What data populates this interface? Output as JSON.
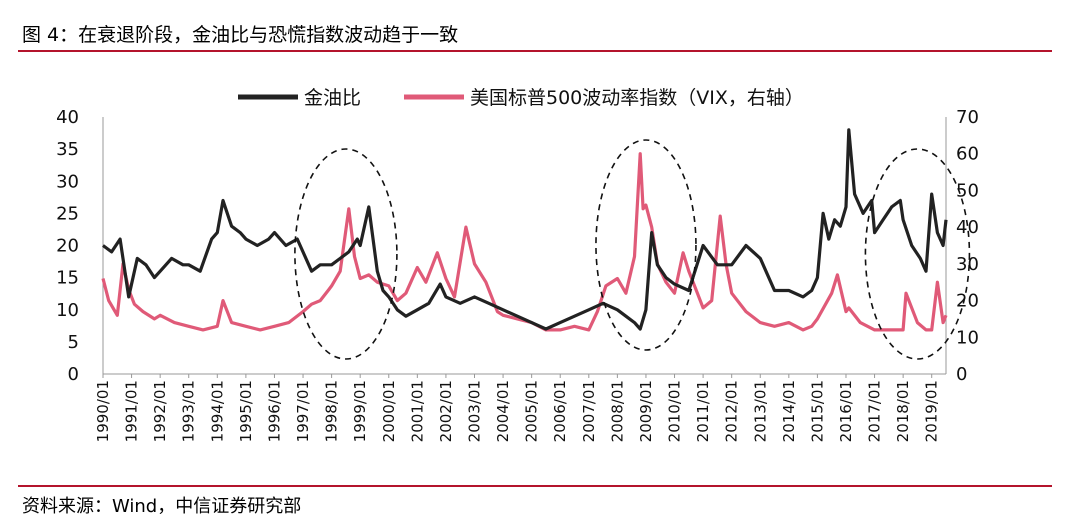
{
  "header": {
    "title": "图 4：在衰退阶段，金油比与恐慌指数波动趋于一致"
  },
  "footer": {
    "source": "资料来源：Wind，中信证券研究部"
  },
  "colors": {
    "accent_rule": "#b4142c",
    "gold_oil": "#222222",
    "vix": "#e05a78"
  },
  "chart_data": {
    "type": "line",
    "title": "",
    "xlabel": "",
    "ylabel": "",
    "ylim_left": [
      0,
      40
    ],
    "ylim_right": [
      0,
      70
    ],
    "yticks_left": [
      "0",
      "5",
      "10",
      "15",
      "20",
      "25",
      "30",
      "35",
      "40"
    ],
    "yticks_right": [
      "0",
      "10",
      "20",
      "30",
      "40",
      "50",
      "60",
      "70"
    ],
    "xticks": [
      "1990/01",
      "1991/01",
      "1992/01",
      "1993/01",
      "1994/01",
      "1995/01",
      "1996/01",
      "1997/01",
      "1998/01",
      "1999/01",
      "2000/01",
      "2001/01",
      "2002/01",
      "2003/01",
      "2004/01",
      "2005/01",
      "2006/01",
      "2007/01",
      "2008/01",
      "2009/01",
      "2010/01",
      "2011/01",
      "2012/01",
      "2013/01",
      "2014/01",
      "2015/01",
      "2016/01",
      "2017/01",
      "2018/01",
      "2019/01"
    ],
    "legend_position": "top",
    "series": [
      {
        "name": "金油比",
        "axis": "left",
        "x": [
          1990.0,
          1990.3,
          1990.6,
          1990.9,
          1991.2,
          1991.5,
          1991.8,
          1992.0,
          1992.4,
          1992.8,
          1993.0,
          1993.4,
          1993.8,
          1994.0,
          1994.2,
          1994.5,
          1994.8,
          1995.0,
          1995.4,
          1995.8,
          1996.0,
          1996.4,
          1996.8,
          1997.0,
          1997.3,
          1997.6,
          1998.0,
          1998.3,
          1998.6,
          1998.9,
          1999.0,
          1999.3,
          1999.6,
          1999.8,
          2000.0,
          2000.3,
          2000.6,
          2001.0,
          2001.4,
          2001.8,
          2002.0,
          2002.5,
          2003.0,
          2003.5,
          2004.0,
          2004.5,
          2005.0,
          2005.5,
          2006.0,
          2006.5,
          2007.0,
          2007.5,
          2008.0,
          2008.3,
          2008.6,
          2008.8,
          2009.0,
          2009.2,
          2009.4,
          2009.7,
          2010.0,
          2010.5,
          2011.0,
          2011.5,
          2012.0,
          2012.5,
          2013.0,
          2013.5,
          2014.0,
          2014.5,
          2014.8,
          2015.0,
          2015.2,
          2015.4,
          2015.6,
          2015.8,
          2016.0,
          2016.1,
          2016.3,
          2016.6,
          2016.9,
          2017.0,
          2017.3,
          2017.6,
          2017.9,
          2018.0,
          2018.3,
          2018.6,
          2018.8,
          2019.0,
          2019.2,
          2019.4,
          2019.5
        ],
        "y": [
          20,
          19,
          21,
          12,
          18,
          17,
          15,
          16,
          18,
          17,
          17,
          16,
          21,
          22,
          27,
          23,
          22,
          21,
          20,
          21,
          22,
          20,
          21,
          19,
          16,
          17,
          17,
          18,
          19,
          21,
          20,
          26,
          16,
          13,
          12,
          10,
          9,
          10,
          11,
          14,
          12,
          11,
          12,
          11,
          10,
          9,
          8,
          7,
          8,
          9,
          10,
          11,
          10,
          9,
          8,
          7,
          10,
          22,
          17,
          15,
          14,
          13,
          20,
          17,
          17,
          20,
          18,
          13,
          13,
          12,
          13,
          15,
          25,
          21,
          24,
          23,
          26,
          38,
          28,
          25,
          27,
          22,
          24,
          26,
          27,
          24,
          20,
          18,
          16,
          28,
          22,
          20,
          24
        ]
      },
      {
        "name": "美国标普500波动率指数（VIX，右轴）",
        "axis": "right",
        "x": [
          1990.0,
          1990.2,
          1990.5,
          1990.7,
          1990.9,
          1991.1,
          1991.4,
          1991.8,
          1992.0,
          1992.5,
          1993.0,
          1993.5,
          1994.0,
          1994.2,
          1994.5,
          1995.0,
          1995.5,
          1996.0,
          1996.5,
          1997.0,
          1997.3,
          1997.6,
          1997.9,
          1998.0,
          1998.3,
          1998.6,
          1998.8,
          1999.0,
          1999.3,
          1999.6,
          2000.0,
          2000.3,
          2000.6,
          2001.0,
          2001.3,
          2001.7,
          2002.0,
          2002.3,
          2002.7,
          2003.0,
          2003.4,
          2003.8,
          2004.0,
          2004.5,
          2005.0,
          2005.5,
          2006.0,
          2006.5,
          2007.0,
          2007.3,
          2007.6,
          2008.0,
          2008.3,
          2008.6,
          2008.8,
          2008.9,
          2009.0,
          2009.2,
          2009.4,
          2009.7,
          2010.0,
          2010.3,
          2010.5,
          2010.8,
          2011.0,
          2011.3,
          2011.6,
          2011.8,
          2012.0,
          2012.5,
          2013.0,
          2013.5,
          2014.0,
          2014.5,
          2014.8,
          2015.0,
          2015.5,
          2015.7,
          2016.0,
          2016.1,
          2016.5,
          2017.0,
          2017.5,
          2018.0,
          2018.1,
          2018.5,
          2018.8,
          2019.0,
          2019.2,
          2019.4,
          2019.5
        ],
        "y": [
          26,
          20,
          16,
          30,
          23,
          19,
          17,
          15,
          16,
          14,
          13,
          12,
          13,
          20,
          14,
          13,
          12,
          13,
          14,
          17,
          19,
          20,
          23,
          24,
          28,
          45,
          32,
          26,
          27,
          25,
          24,
          20,
          22,
          29,
          25,
          33,
          26,
          21,
          40,
          30,
          25,
          17,
          16,
          15,
          14,
          12,
          12,
          13,
          12,
          17,
          24,
          26,
          22,
          32,
          60,
          45,
          46,
          40,
          30,
          25,
          22,
          33,
          28,
          22,
          18,
          20,
          43,
          30,
          22,
          17,
          14,
          13,
          14,
          12,
          13,
          15,
          22,
          27,
          17,
          18,
          14,
          12,
          12,
          12,
          22,
          14,
          12,
          12,
          25,
          14,
          16
        ]
      }
    ]
  }
}
